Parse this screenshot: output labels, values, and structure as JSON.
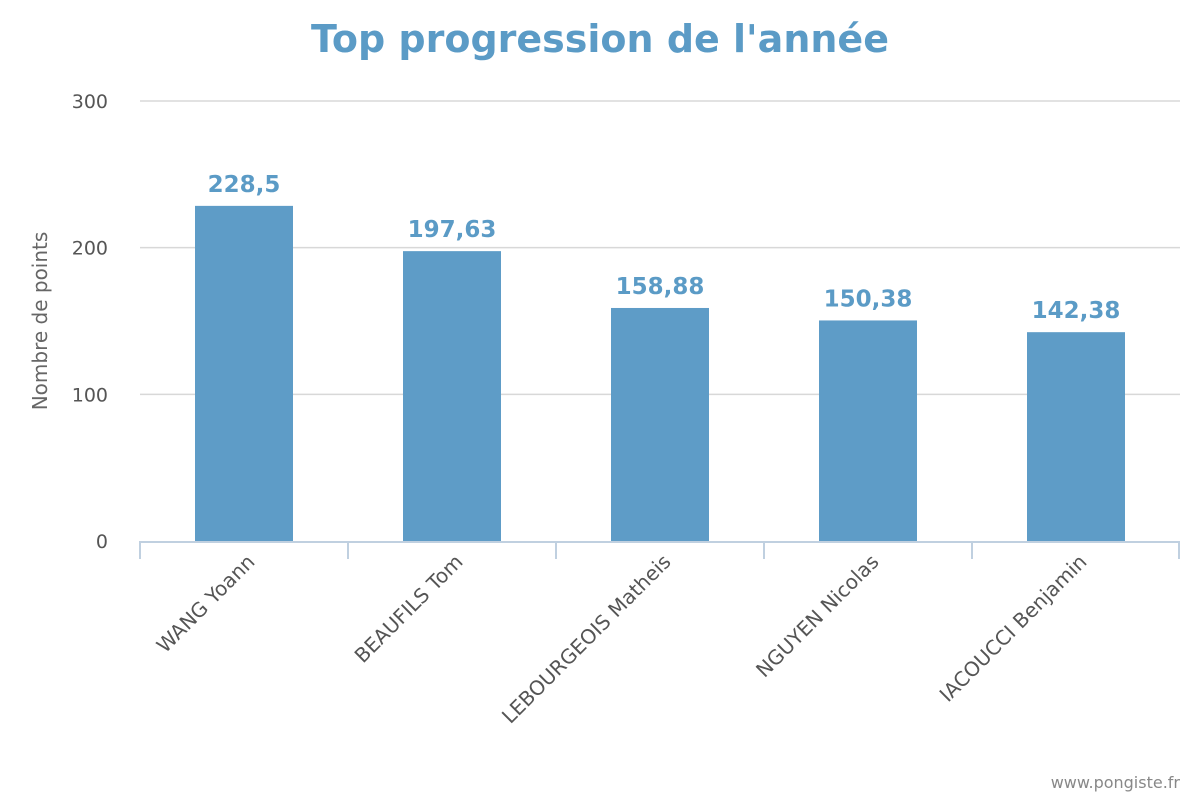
{
  "chart_data": {
    "type": "bar",
    "title": "Top progression de l'année",
    "xlabel": "",
    "ylabel": "Nombre de points",
    "ylim": [
      0,
      300
    ],
    "yticks": [
      0,
      100,
      200,
      300
    ],
    "grid": true,
    "categories": [
      "WANG Yoann",
      "BEAUFILS Tom",
      "LEBOURGEOIS Matheis",
      "NGUYEN Nicolas",
      "IACOUCCI Benjamin"
    ],
    "values": [
      228.5,
      197.63,
      158.88,
      150.38,
      142.38
    ],
    "data_labels": [
      "228,5",
      "197,63",
      "158,88",
      "150,38",
      "142,38"
    ],
    "colors": {
      "bar": "#5e9cc7",
      "title": "#5b9bc6",
      "grid": "#d8d8d8",
      "axis": "#c0d0e0"
    }
  },
  "credit": "www.pongiste.fr"
}
